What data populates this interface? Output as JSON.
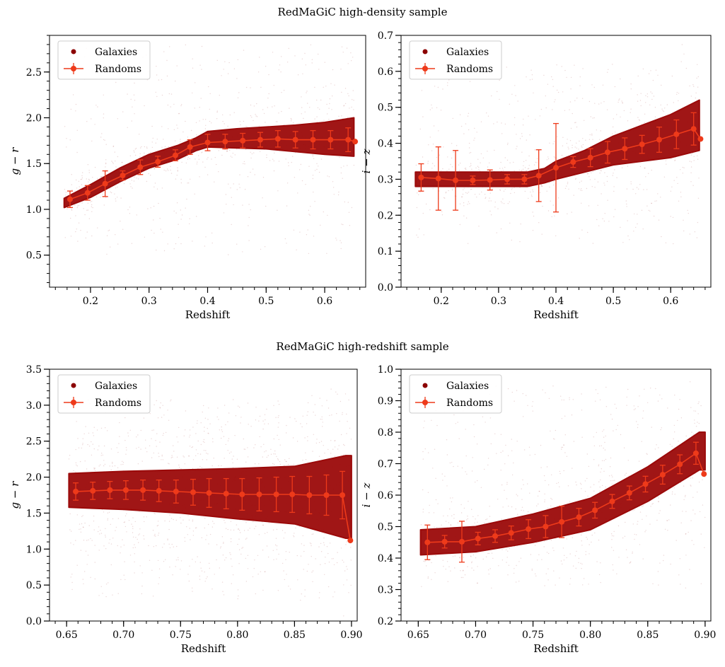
{
  "titles": [
    "RedMaGiC high-density sample",
    "RedMaGiC high-redshift sample"
  ],
  "legend": {
    "galaxies": "Galaxies",
    "randoms": "Randoms"
  },
  "colors": {
    "galaxies": "#8b0000",
    "randoms": "#ee3a1a",
    "band": "#9b0a0a"
  },
  "chart_data": [
    {
      "id": "hd-gr",
      "type": "scatter",
      "title": "RedMaGiC high-density sample",
      "xlabel": "Redshift",
      "ylabel": "g − r",
      "xlim": [
        0.13,
        0.67
      ],
      "ylim": [
        0.15,
        2.9
      ],
      "xticks": [
        0.2,
        0.3,
        0.4,
        0.5,
        0.6
      ],
      "xtick_labels": [
        "0.2",
        "0.3",
        "0.4",
        "0.5",
        "0.6"
      ],
      "yticks": [
        0.5,
        1.0,
        1.5,
        2.0,
        2.5
      ],
      "ytick_labels": [
        "0.5",
        "1.0",
        "1.5",
        "2.0",
        "2.5"
      ],
      "legend_position": "top-left",
      "galaxy_band": {
        "x": [
          0.155,
          0.2,
          0.25,
          0.3,
          0.35,
          0.38,
          0.4,
          0.45,
          0.5,
          0.55,
          0.6,
          0.65
        ],
        "lo": [
          1.02,
          1.13,
          1.3,
          1.45,
          1.55,
          1.64,
          1.68,
          1.67,
          1.66,
          1.63,
          1.6,
          1.58
        ],
        "hi": [
          1.12,
          1.27,
          1.45,
          1.6,
          1.7,
          1.78,
          1.85,
          1.88,
          1.9,
          1.92,
          1.95,
          2.0
        ]
      },
      "galaxy_scatter": {
        "count": 900,
        "ymin": 0.5,
        "ymax": 2.8
      },
      "randoms": {
        "x": [
          0.165,
          0.195,
          0.225,
          0.255,
          0.285,
          0.315,
          0.345,
          0.37,
          0.4,
          0.43,
          0.46,
          0.49,
          0.52,
          0.55,
          0.58,
          0.61,
          0.64,
          0.652
        ],
        "y": [
          1.11,
          1.18,
          1.28,
          1.37,
          1.46,
          1.52,
          1.59,
          1.68,
          1.73,
          1.74,
          1.75,
          1.76,
          1.77,
          1.76,
          1.76,
          1.76,
          1.76,
          1.74
        ],
        "err": [
          0.09,
          0.08,
          0.14,
          0.05,
          0.08,
          0.06,
          0.06,
          0.08,
          0.09,
          0.08,
          0.08,
          0.08,
          0.09,
          0.09,
          0.1,
          0.1,
          0.13,
          0
        ]
      }
    },
    {
      "id": "hd-iz",
      "type": "scatter",
      "title": "RedMaGiC high-density sample",
      "xlabel": "Redshift",
      "ylabel": "i − z",
      "xlim": [
        0.13,
        0.67
      ],
      "ylim": [
        0.0,
        0.7
      ],
      "xticks": [
        0.2,
        0.3,
        0.4,
        0.5,
        0.6
      ],
      "xtick_labels": [
        "0.2",
        "0.3",
        "0.4",
        "0.5",
        "0.6"
      ],
      "yticks": [
        0.0,
        0.1,
        0.2,
        0.3,
        0.4,
        0.5,
        0.6,
        0.7
      ],
      "ytick_labels": [
        "0.0",
        "0.1",
        "0.2",
        "0.3",
        "0.4",
        "0.5",
        "0.6",
        "0.7"
      ],
      "legend_position": "top-left",
      "galaxy_band": {
        "x": [
          0.155,
          0.2,
          0.25,
          0.3,
          0.35,
          0.38,
          0.4,
          0.45,
          0.5,
          0.55,
          0.6,
          0.65
        ],
        "lo": [
          0.28,
          0.28,
          0.28,
          0.28,
          0.28,
          0.29,
          0.3,
          0.32,
          0.34,
          0.35,
          0.36,
          0.38
        ],
        "hi": [
          0.32,
          0.32,
          0.32,
          0.32,
          0.32,
          0.33,
          0.35,
          0.38,
          0.42,
          0.45,
          0.48,
          0.52
        ]
      },
      "galaxy_scatter": {
        "count": 900,
        "ymin": 0.12,
        "ymax": 0.62
      },
      "randoms": {
        "x": [
          0.165,
          0.195,
          0.225,
          0.255,
          0.285,
          0.315,
          0.345,
          0.37,
          0.4,
          0.43,
          0.46,
          0.49,
          0.52,
          0.55,
          0.58,
          0.61,
          0.64,
          0.652
        ],
        "y": [
          0.305,
          0.302,
          0.297,
          0.297,
          0.298,
          0.3,
          0.3,
          0.31,
          0.332,
          0.348,
          0.36,
          0.375,
          0.385,
          0.397,
          0.41,
          0.425,
          0.44,
          0.412
        ],
        "err": [
          0.038,
          0.088,
          0.083,
          0.012,
          0.028,
          0.013,
          0.013,
          0.072,
          0.123,
          0.015,
          0.025,
          0.03,
          0.03,
          0.025,
          0.035,
          0.04,
          0.045,
          0
        ]
      }
    },
    {
      "id": "hr-gr",
      "type": "scatter",
      "title": "RedMaGiC high-redshift sample",
      "xlabel": "Redshift",
      "ylabel": "g − r",
      "xlim": [
        0.635,
        0.905
      ],
      "ylim": [
        0.0,
        3.5
      ],
      "xticks": [
        0.65,
        0.7,
        0.75,
        0.8,
        0.85,
        0.9
      ],
      "xtick_labels": [
        "0.65",
        "0.70",
        "0.75",
        "0.80",
        "0.85",
        "0.90"
      ],
      "yticks": [
        0.0,
        0.5,
        1.0,
        1.5,
        2.0,
        2.5,
        3.0,
        3.5
      ],
      "ytick_labels": [
        "0.0",
        "0.5",
        "1.0",
        "1.5",
        "2.0",
        "2.5",
        "3.0",
        "3.5"
      ],
      "legend_position": "top-left",
      "galaxy_band": {
        "x": [
          0.652,
          0.7,
          0.75,
          0.8,
          0.85,
          0.895,
          0.9
        ],
        "lo": [
          1.58,
          1.55,
          1.5,
          1.42,
          1.35,
          1.15,
          1.15
        ],
        "hi": [
          2.05,
          2.08,
          2.1,
          2.12,
          2.15,
          2.3,
          2.3
        ]
      },
      "galaxy_scatter": {
        "count": 1200,
        "ymin": 0.3,
        "ymax": 3.1
      },
      "randoms": {
        "x": [
          0.658,
          0.673,
          0.688,
          0.702,
          0.717,
          0.731,
          0.746,
          0.761,
          0.775,
          0.79,
          0.804,
          0.819,
          0.834,
          0.848,
          0.863,
          0.878,
          0.892,
          0.899
        ],
        "y": [
          1.8,
          1.81,
          1.82,
          1.82,
          1.82,
          1.81,
          1.8,
          1.79,
          1.78,
          1.77,
          1.76,
          1.76,
          1.76,
          1.76,
          1.75,
          1.75,
          1.75,
          1.12
        ],
        "err": [
          0.12,
          0.12,
          0.12,
          0.13,
          0.14,
          0.15,
          0.16,
          0.18,
          0.2,
          0.21,
          0.22,
          0.23,
          0.24,
          0.25,
          0.26,
          0.28,
          0.33,
          0
        ]
      }
    },
    {
      "id": "hr-iz",
      "type": "scatter",
      "title": "RedMaGiC high-redshift sample",
      "xlabel": "Redshift",
      "ylabel": "i − z",
      "xlim": [
        0.635,
        0.905
      ],
      "ylim": [
        0.2,
        1.0
      ],
      "xticks": [
        0.65,
        0.7,
        0.75,
        0.8,
        0.85,
        0.9
      ],
      "xtick_labels": [
        "0.65",
        "0.70",
        "0.75",
        "0.80",
        "0.85",
        "0.90"
      ],
      "yticks": [
        0.2,
        0.3,
        0.4,
        0.5,
        0.6,
        0.7,
        0.8,
        0.9,
        1.0
      ],
      "ytick_labels": [
        "0.2",
        "0.3",
        "0.4",
        "0.5",
        "0.6",
        "0.7",
        "0.8",
        "0.9",
        "1.0"
      ],
      "legend_position": "top-left",
      "galaxy_band": {
        "x": [
          0.652,
          0.7,
          0.75,
          0.8,
          0.85,
          0.895,
          0.9
        ],
        "lo": [
          0.41,
          0.42,
          0.45,
          0.49,
          0.58,
          0.68,
          0.68
        ],
        "hi": [
          0.49,
          0.5,
          0.54,
          0.59,
          0.69,
          0.8,
          0.8
        ]
      },
      "galaxy_scatter": {
        "count": 900,
        "ymin": 0.3,
        "ymax": 0.95
      },
      "randoms": {
        "x": [
          0.658,
          0.673,
          0.688,
          0.702,
          0.717,
          0.731,
          0.746,
          0.761,
          0.775,
          0.79,
          0.804,
          0.819,
          0.834,
          0.848,
          0.863,
          0.878,
          0.892,
          0.899
        ],
        "y": [
          0.45,
          0.452,
          0.452,
          0.462,
          0.47,
          0.48,
          0.492,
          0.5,
          0.515,
          0.53,
          0.552,
          0.58,
          0.607,
          0.635,
          0.665,
          0.698,
          0.733,
          0.667
        ],
        "err": [
          0.055,
          0.02,
          0.065,
          0.02,
          0.02,
          0.022,
          0.03,
          0.035,
          0.05,
          0.028,
          0.025,
          0.022,
          0.022,
          0.025,
          0.03,
          0.03,
          0.035,
          0
        ]
      }
    }
  ]
}
